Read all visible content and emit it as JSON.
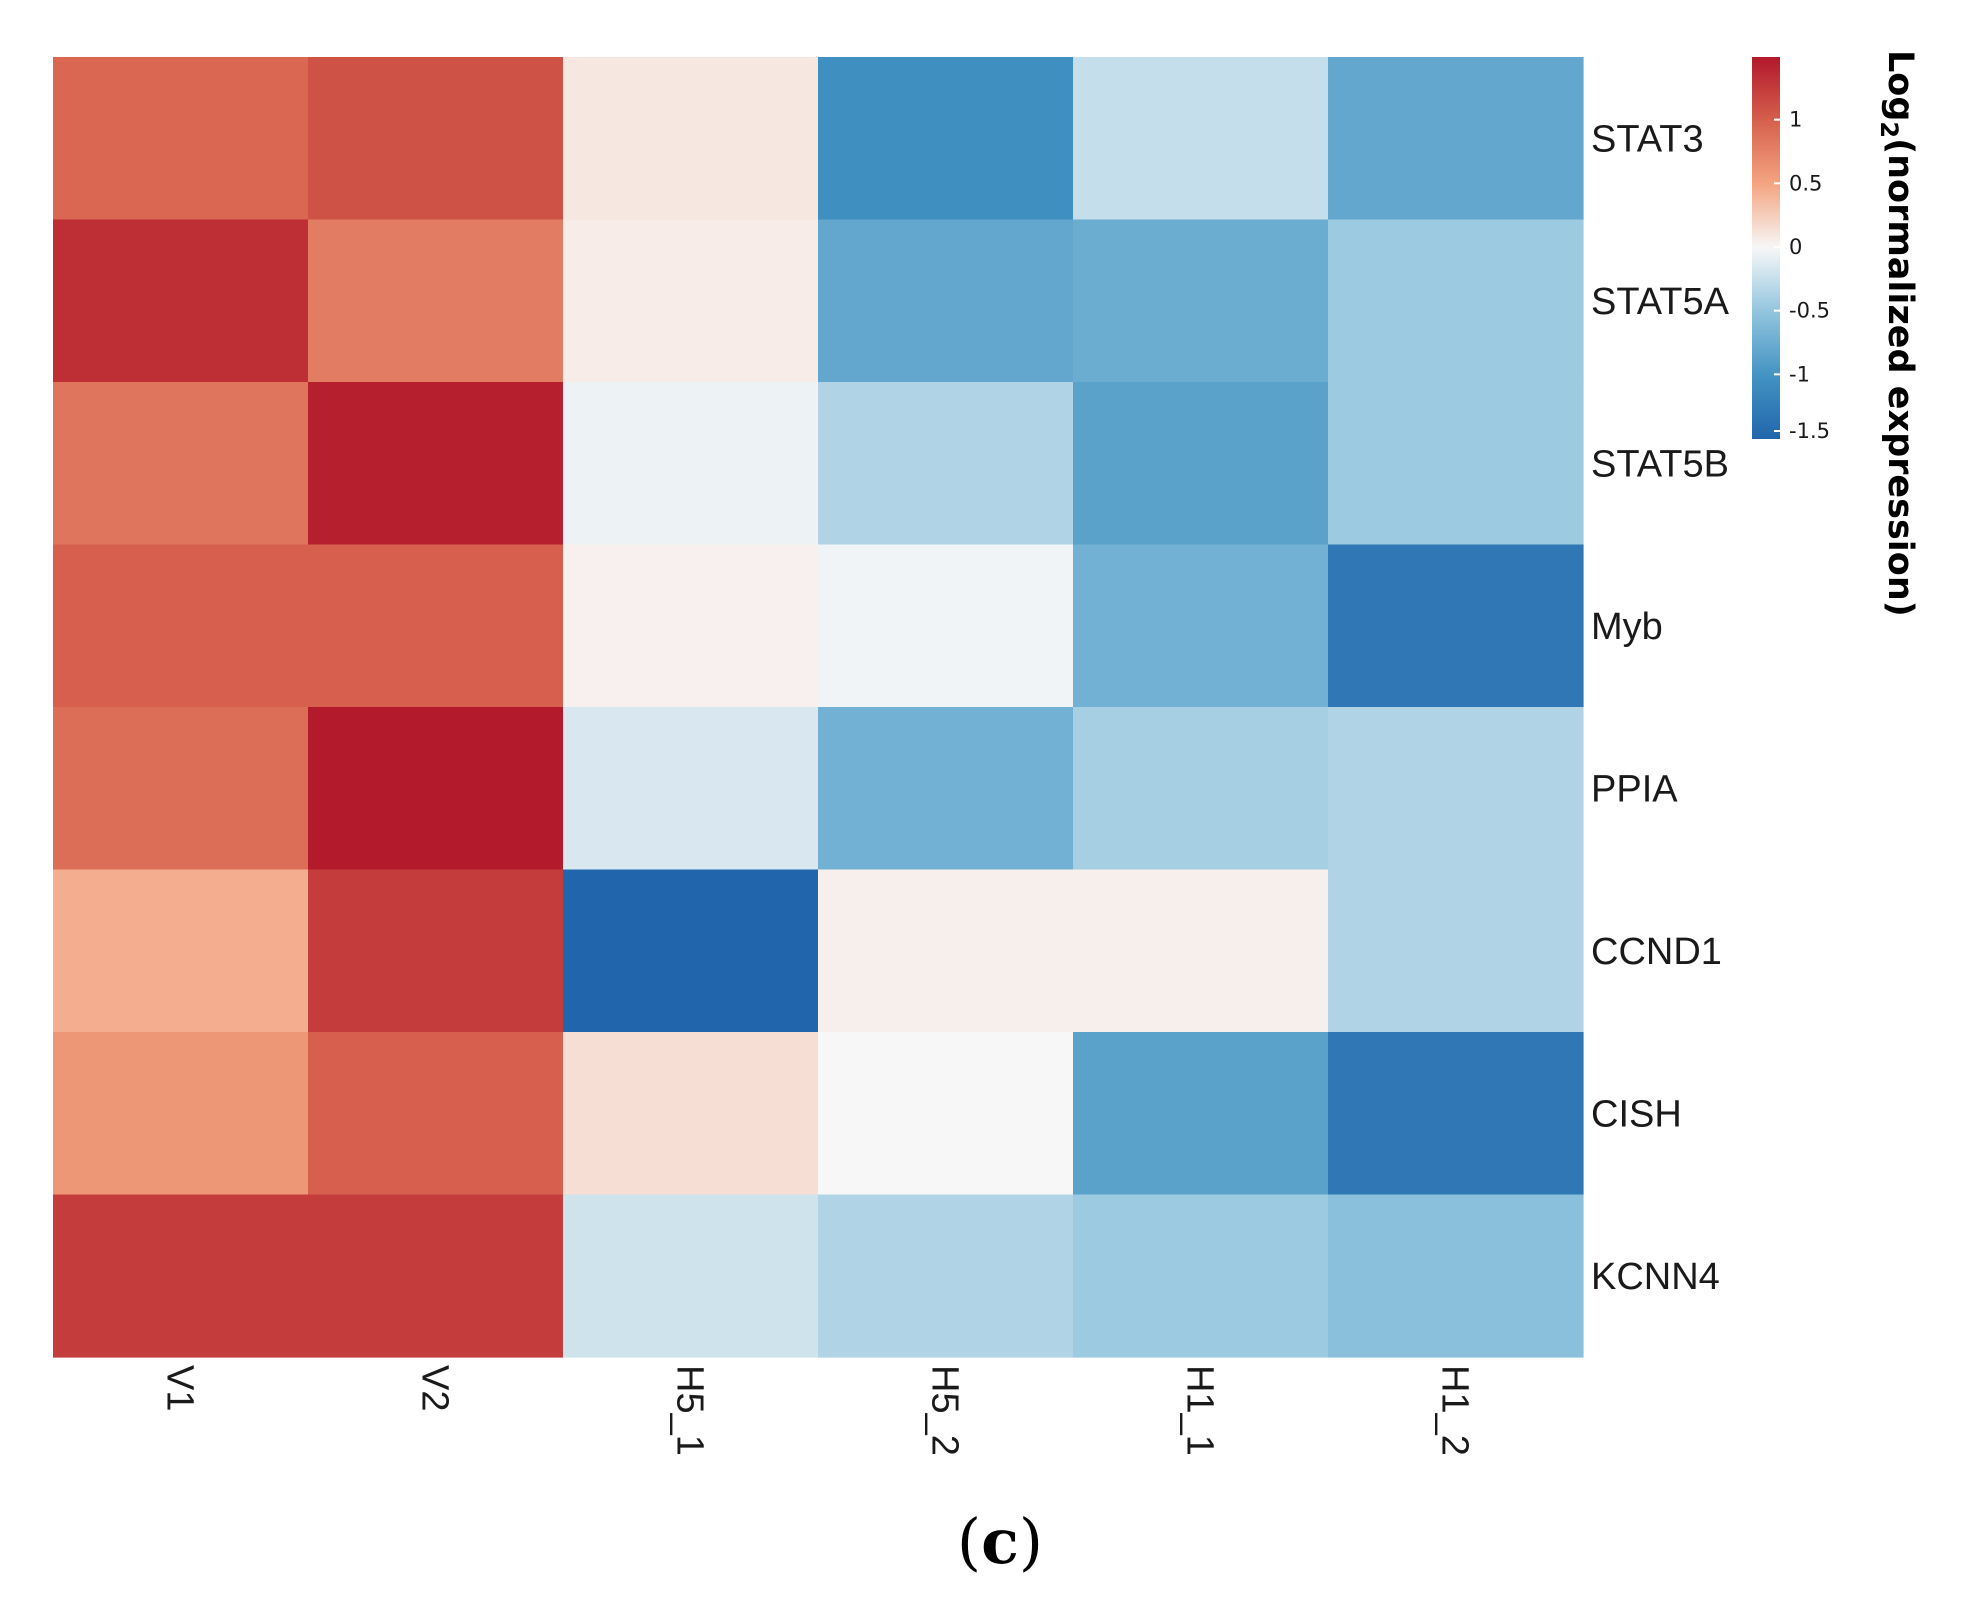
{
  "chart_data": {
    "type": "heatmap",
    "title": "",
    "rows": [
      "STAT3",
      "STAT5A",
      "STAT5B",
      "Myb",
      "PPIA",
      "CCND1",
      "CISH",
      "KCNN4"
    ],
    "columns": [
      "V1",
      "V2",
      "H5_1",
      "H5_2",
      "H1_1",
      "H1_2"
    ],
    "values": [
      [
        0.95,
        1.1,
        0.1,
        -1.05,
        -0.25,
        -0.8
      ],
      [
        1.35,
        0.8,
        0.07,
        -0.8,
        -0.75,
        -0.45
      ],
      [
        0.85,
        1.45,
        -0.05,
        -0.35,
        -0.85,
        -0.45
      ],
      [
        1.0,
        1.0,
        0.04,
        -0.03,
        -0.7,
        -1.3
      ],
      [
        0.9,
        1.48,
        -0.15,
        -0.7,
        -0.4,
        -0.35
      ],
      [
        0.45,
        1.25,
        -1.5,
        0.05,
        0.05,
        -0.35
      ],
      [
        0.6,
        1.0,
        0.15,
        0.0,
        -0.85,
        -1.3
      ],
      [
        1.25,
        1.25,
        -0.2,
        -0.35,
        -0.45,
        -0.55
      ]
    ],
    "colorscale": {
      "min": -1.5,
      "max": 1.5,
      "low_color": "#2166ac",
      "mid_color": "#f7f7f7",
      "high_color": "#b2182b"
    },
    "legend": {
      "title_prefix": "Log",
      "title_subscript": "2",
      "title_suffix": "(normalized expression)",
      "ticks": [
        1,
        0.5,
        0,
        -0.5,
        -1,
        -1.5
      ],
      "tick_labels": [
        "1",
        "0.5",
        "0",
        "-0.5",
        "-1",
        "-1.5"
      ],
      "placement": "top-right"
    },
    "panel_label": {
      "open": "(",
      "letter": "c",
      "close": ")"
    }
  }
}
